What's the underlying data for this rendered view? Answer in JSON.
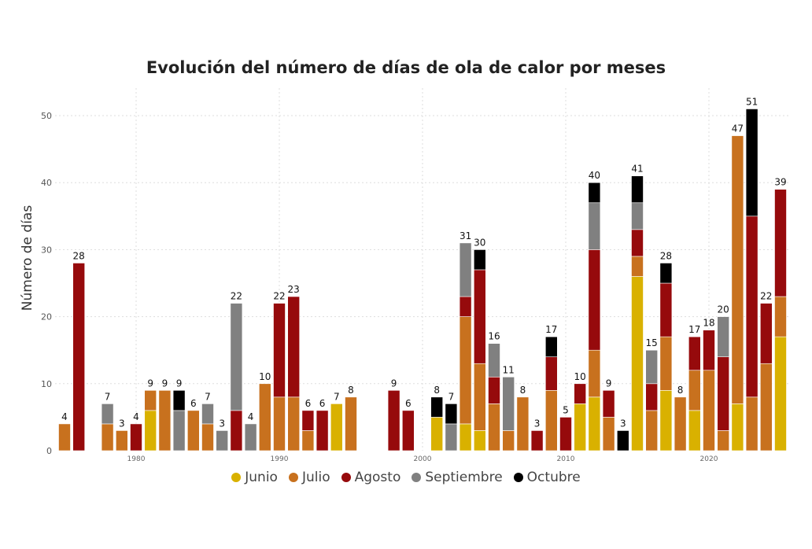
{
  "chart_data": {
    "type": "bar",
    "stacked": true,
    "title": "Evolución del número de días de ola de calor por meses",
    "xlabel": "",
    "ylabel": "Número de días",
    "ylim": [
      0,
      53
    ],
    "yticks": [
      0,
      10,
      20,
      30,
      40,
      50
    ],
    "xticks": [
      1980,
      1990,
      2000,
      2010,
      2020
    ],
    "grid": true,
    "legend": "bottom",
    "categories": [
      1975,
      1976,
      1978,
      1979,
      1980,
      1981,
      1982,
      1983,
      1984,
      1985,
      1986,
      1987,
      1988,
      1989,
      1990,
      1991,
      1992,
      1993,
      1994,
      1995,
      1998,
      1999,
      2001,
      2002,
      2003,
      2004,
      2005,
      2006,
      2007,
      2008,
      2009,
      2010,
      2011,
      2012,
      2013,
      2014,
      2015,
      2016,
      2017,
      2018,
      2019,
      2020,
      2021,
      2022,
      2023,
      2024,
      2025
    ],
    "series": [
      {
        "name": "Junio",
        "color": "#D9B100",
        "values": [
          0,
          0,
          0,
          0,
          0,
          6,
          0,
          0,
          0,
          0,
          0,
          0,
          0,
          0,
          0,
          0,
          0,
          0,
          7,
          0,
          0,
          0,
          5,
          0,
          4,
          3,
          0,
          0,
          0,
          0,
          0,
          0,
          7,
          8,
          0,
          0,
          26,
          0,
          9,
          0,
          6,
          0,
          0,
          7,
          0,
          0,
          17
        ]
      },
      {
        "name": "Julio",
        "color": "#C8711E",
        "values": [
          4,
          0,
          4,
          3,
          0,
          3,
          9,
          0,
          6,
          4,
          0,
          0,
          0,
          10,
          8,
          8,
          3,
          0,
          0,
          8,
          0,
          0,
          0,
          0,
          16,
          10,
          7,
          3,
          8,
          0,
          9,
          0,
          0,
          7,
          5,
          0,
          3,
          6,
          8,
          8,
          6,
          12,
          3,
          40,
          8,
          13,
          6
        ]
      },
      {
        "name": "Agosto",
        "color": "#960A0C",
        "values": [
          0,
          28,
          0,
          0,
          4,
          0,
          0,
          0,
          0,
          0,
          0,
          6,
          0,
          0,
          14,
          15,
          3,
          6,
          0,
          0,
          9,
          6,
          0,
          0,
          3,
          14,
          4,
          0,
          0,
          3,
          5,
          5,
          3,
          15,
          4,
          0,
          4,
          4,
          8,
          0,
          5,
          6,
          11,
          0,
          27,
          9,
          16
        ]
      },
      {
        "name": "Septiembre",
        "color": "#808080",
        "values": [
          0,
          0,
          3,
          0,
          0,
          0,
          0,
          6,
          0,
          3,
          3,
          16,
          4,
          0,
          0,
          0,
          0,
          0,
          0,
          0,
          0,
          0,
          0,
          4,
          8,
          0,
          5,
          8,
          0,
          0,
          0,
          0,
          0,
          7,
          0,
          0,
          4,
          5,
          0,
          0,
          0,
          0,
          6,
          0,
          0,
          0,
          0
        ]
      },
      {
        "name": "Octubre",
        "color": "#000000",
        "values": [
          0,
          0,
          0,
          0,
          0,
          0,
          0,
          3,
          0,
          0,
          0,
          0,
          0,
          0,
          0,
          0,
          0,
          0,
          0,
          0,
          0,
          0,
          3,
          3,
          0,
          3,
          0,
          0,
          0,
          0,
          3,
          0,
          0,
          3,
          0,
          3,
          4,
          0,
          3,
          0,
          0,
          0,
          0,
          0,
          16,
          0,
          0
        ]
      }
    ],
    "totals": [
      "4",
      "28",
      "7",
      "3",
      "4",
      "9",
      "9",
      "9",
      "6",
      "7",
      "3",
      "22",
      "4",
      "10",
      "22",
      "23",
      "6",
      "6",
      "7",
      "8",
      "9",
      "6",
      "8",
      "7",
      "31",
      "30",
      "16",
      "11",
      "8",
      "3",
      "17",
      "5",
      "10",
      "40",
      "9",
      "3",
      "41",
      "15",
      "28",
      "8",
      "17",
      "18",
      "20",
      "47",
      "51",
      "22",
      "39"
    ]
  }
}
